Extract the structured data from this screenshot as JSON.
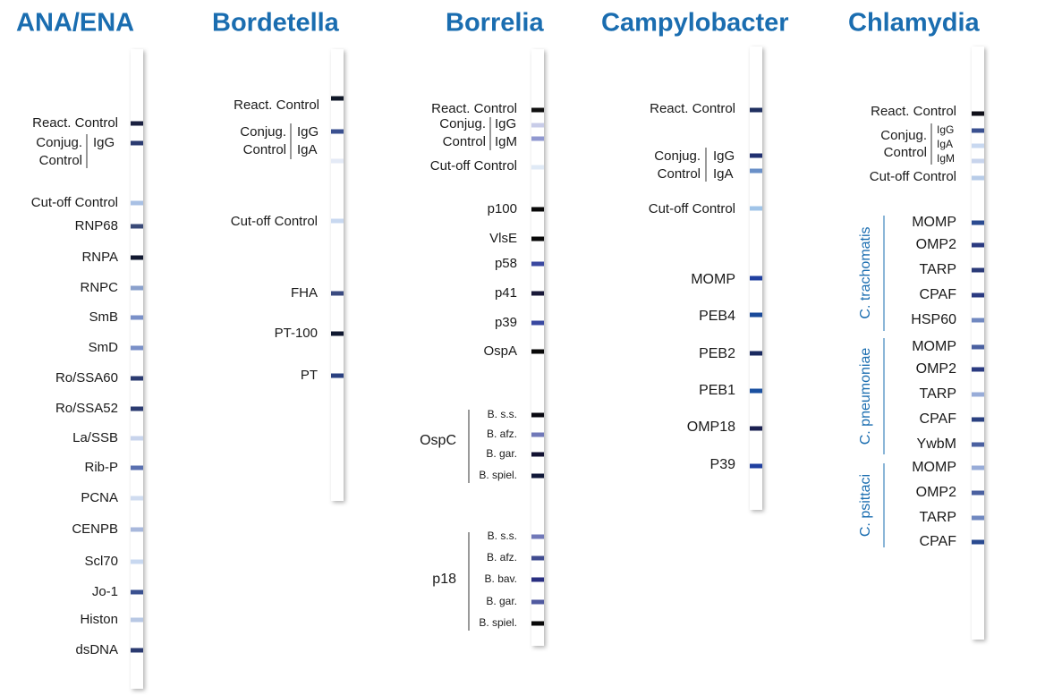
{
  "panels": [
    {
      "title": "ANA/ENA",
      "labels": [
        "React. Control",
        "Conjug.",
        "Control",
        "IgG",
        "Cut-off Control",
        "RNP68",
        "RNPA",
        "RNPC",
        "SmB",
        "SmD",
        "Ro/SSA60",
        "Ro/SSA52",
        "La/SSB",
        "Rib-P",
        "PCNA",
        "CENPB",
        "Scl70",
        "Jo-1",
        "Histon",
        "dsDNA"
      ]
    },
    {
      "title": "Bordetella",
      "labels": [
        "React. Control",
        "Conjug.",
        "Control",
        "IgG",
        "IgA",
        "Cut-off Control",
        "FHA",
        "PT-100",
        "PT"
      ]
    },
    {
      "title": "Borrelia",
      "labels": [
        "React. Control",
        "Conjug.",
        "Control",
        "IgG",
        "IgM",
        "Cut-off Control",
        "p100",
        "VlsE",
        "p58",
        "p41",
        "p39",
        "OspA",
        "OspC",
        "B. s.s.",
        "B. afz.",
        "B. gar.",
        "B. spiel.",
        "p18",
        "B. s.s.",
        "B. afz.",
        "B. bav.",
        "B. gar.",
        "B. spiel."
      ]
    },
    {
      "title": "Campylobacter",
      "labels": [
        "React. Control",
        "Conjug.",
        "Control",
        "IgG",
        "IgA",
        "Cut-off Control",
        "MOMP",
        "PEB4",
        "PEB2",
        "PEB1",
        "OMP18",
        "P39"
      ]
    },
    {
      "title": "Chlamydia",
      "labels": [
        "React. Control",
        "Conjug.",
        "Control",
        "IgG",
        "IgA",
        "IgM",
        "Cut-off Control",
        "C. trachomatis",
        "MOMP",
        "OMP2",
        "TARP",
        "CPAF",
        "HSP60",
        "C. pneumoniae",
        "MOMP",
        "OMP2",
        "TARP",
        "CPAF",
        "YwbM",
        "C. psittaci",
        "MOMP",
        "OMP2",
        "TARP",
        "CPAF"
      ]
    }
  ]
}
